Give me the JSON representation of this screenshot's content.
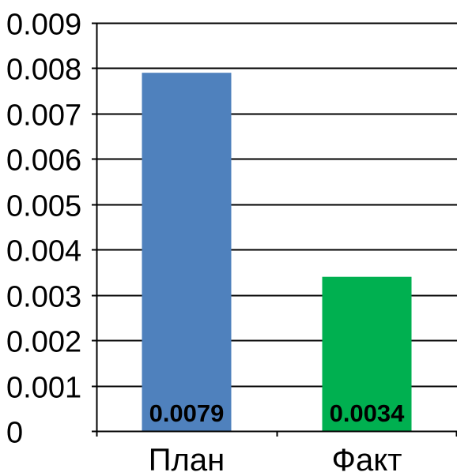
{
  "chart_data": {
    "type": "bar",
    "title": "",
    "xlabel": "",
    "ylabel": "",
    "categories": [
      "План",
      "Факт"
    ],
    "values": [
      0.0079,
      0.0034
    ],
    "data_labels": [
      "0.0079",
      "0.0034"
    ],
    "bar_colors": [
      "#4f81bd",
      "#00b050"
    ],
    "ylim": [
      0,
      0.009
    ],
    "yticks": [
      0,
      0.001,
      0.002,
      0.003,
      0.004,
      0.005,
      0.006,
      0.007,
      0.008,
      0.009
    ],
    "ytick_labels": [
      "0",
      "0.001",
      "0.002",
      "0.003",
      "0.004",
      "0.005",
      "0.006",
      "0.007",
      "0.008",
      "0.009"
    ],
    "grid": true,
    "legend": "none"
  }
}
